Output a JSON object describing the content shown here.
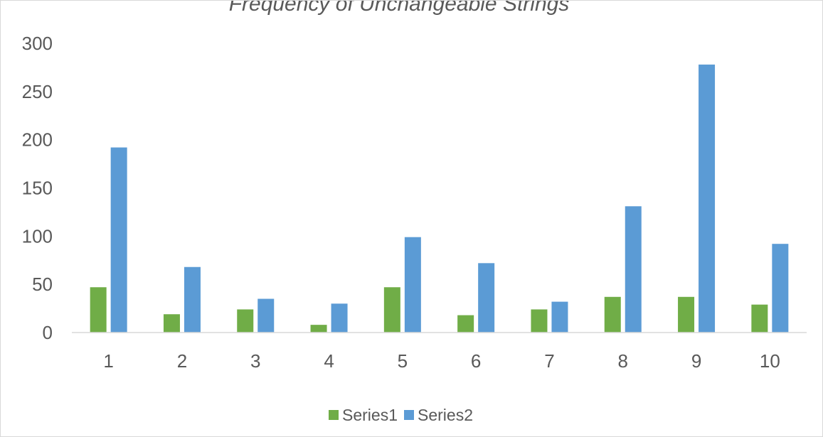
{
  "chart_data": {
    "type": "bar",
    "title": "Frequency of Unchangeable Strings",
    "xlabel": "",
    "ylabel": "",
    "categories": [
      "1",
      "2",
      "3",
      "4",
      "5",
      "6",
      "7",
      "8",
      "9",
      "10"
    ],
    "series": [
      {
        "name": "Series1",
        "color": "#70ad47",
        "values": [
          47,
          19,
          24,
          8,
          47,
          18,
          24,
          37,
          37,
          29
        ]
      },
      {
        "name": "Series2",
        "color": "#5b9bd5",
        "values": [
          192,
          68,
          35,
          30,
          99,
          72,
          32,
          131,
          278,
          92
        ]
      }
    ],
    "ylim": [
      0,
      300
    ],
    "yticks": [
      "0",
      "50",
      "100",
      "150",
      "200",
      "250",
      "300"
    ],
    "grid": false,
    "legend_position": "bottom",
    "axis_color": "#d9d9d9",
    "text_color": "#595959"
  }
}
